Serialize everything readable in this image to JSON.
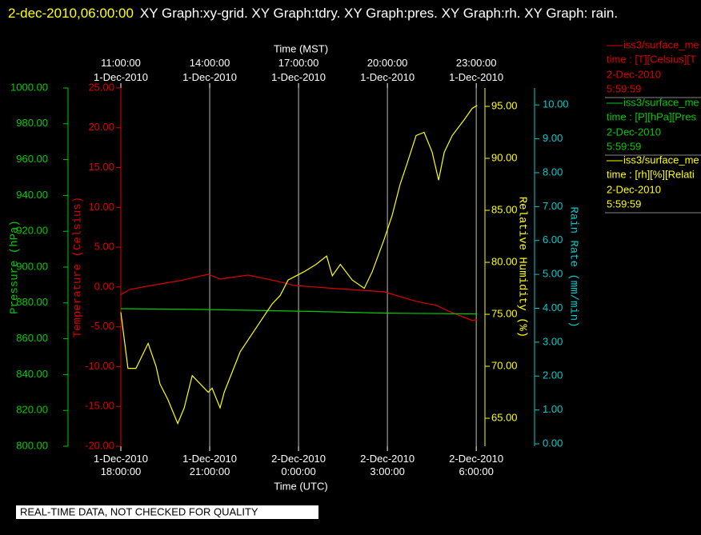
{
  "chart_data": {
    "type": "line",
    "title": "2-dec-2010,06:00:00",
    "subtitle": "XY Graph:xy-grid.  XY Graph:tdry.  XY Graph:pres.  XY Graph:rh.  XY Graph: rain.",
    "xlabel": "Time (UTC)",
    "x2label": "Time (MST)",
    "xlim": [
      0,
      12.05
    ],
    "xticks": [
      {
        "value": 0,
        "label": "1-Dec-2010\n18:00:00"
      },
      {
        "value": 3,
        "label": "1-Dec-2010\n21:00:00"
      },
      {
        "value": 6,
        "label": "2-Dec-2010\n0:00:00"
      },
      {
        "value": 9,
        "label": "2-Dec-2010\n3:00:00"
      },
      {
        "value": 12,
        "label": "2-Dec-2010\n6:00:00"
      }
    ],
    "x2ticks": [
      {
        "value": 0,
        "label": "11:00:00\n1-Dec-2010"
      },
      {
        "value": 3,
        "label": "14:00:00\n1-Dec-2010"
      },
      {
        "value": 6,
        "label": "17:00:00\n1-Dec-2010"
      },
      {
        "value": 9,
        "label": "20:00:00\n1-Dec-2010"
      },
      {
        "value": 12,
        "label": "23:00:00\n1-Dec-2010"
      }
    ],
    "grid": true,
    "axes": [
      {
        "label": "Pressure (hPa)",
        "color": "#00cc00",
        "ylim": [
          800,
          1000
        ],
        "yticks": [
          {
            "value": 800,
            "label": "800.00"
          },
          {
            "value": 820,
            "label": "820.00"
          },
          {
            "value": 840,
            "label": "840.00"
          },
          {
            "value": 860,
            "label": "860.00"
          },
          {
            "value": 880,
            "label": "880.00"
          },
          {
            "value": 900,
            "label": "900.00"
          },
          {
            "value": 920,
            "label": "920.00"
          },
          {
            "value": 940,
            "label": "940.00"
          },
          {
            "value": 960,
            "label": "960.00"
          },
          {
            "value": 980,
            "label": "980.00"
          },
          {
            "value": 1000,
            "label": "1000.00"
          }
        ]
      },
      {
        "label": "Temperature (Celsius)",
        "color": "#dd0000",
        "ylim": [
          -20,
          25
        ],
        "yticks": [
          {
            "value": -20,
            "label": "-20.00"
          },
          {
            "value": -15,
            "label": "-15.00"
          },
          {
            "value": -10,
            "label": "-10.00"
          },
          {
            "value": -5,
            "label": "-5.00"
          },
          {
            "value": 0,
            "label": "0.00"
          },
          {
            "value": 5,
            "label": "5.00"
          },
          {
            "value": 10,
            "label": "10.00"
          },
          {
            "value": 15,
            "label": "15.00"
          },
          {
            "value": 20,
            "label": "20.00"
          },
          {
            "value": 25,
            "label": "25.00"
          }
        ]
      },
      {
        "label": "Relative Humidity (%)",
        "color": "#ffff00",
        "ylim": [
          62.31,
          96.77
        ],
        "yticks": [
          {
            "value": 65,
            "label": "65.00"
          },
          {
            "value": 70,
            "label": "70.00"
          },
          {
            "value": 75,
            "label": "75.00"
          },
          {
            "value": 80,
            "label": "80.00"
          },
          {
            "value": 85,
            "label": "85.00"
          },
          {
            "value": 90,
            "label": "90.00"
          },
          {
            "value": 95,
            "label": "95.00"
          }
        ]
      },
      {
        "label": "Rain Rate (mm/min)",
        "color": "#00cccc",
        "ylim": [
          -0.07,
          10.5
        ],
        "yticks": [
          {
            "value": 0,
            "label": "0.00"
          },
          {
            "value": 1,
            "label": "1.00"
          },
          {
            "value": 2,
            "label": "2.00"
          },
          {
            "value": 3,
            "label": "3.00"
          },
          {
            "value": 4,
            "label": "4.00"
          },
          {
            "value": 5,
            "label": "5.00"
          },
          {
            "value": 6,
            "label": "6.00"
          },
          {
            "value": 7,
            "label": "7.00"
          },
          {
            "value": 8,
            "label": "8.00"
          },
          {
            "value": 9,
            "label": "9.00"
          },
          {
            "value": 10,
            "label": "10.00"
          }
        ]
      }
    ],
    "series": [
      {
        "name": "iss3/surface_me",
        "units": "time : [T][Celsius][T",
        "date": "2-Dec-2010",
        "time": "5:59:59",
        "color": "#dd0000",
        "axis": 1,
        "x": [
          0,
          0.3,
          1.05,
          2.0,
          2.95,
          3.35,
          4.3,
          5.2,
          5.84,
          7.27,
          8.89,
          9.97,
          10.65,
          11.05,
          11.86,
          12.03
        ],
        "values": [
          -1.0,
          -0.3,
          0.2,
          0.8,
          1.6,
          1.0,
          1.5,
          0.8,
          0.2,
          -0.2,
          -0.6,
          -1.8,
          -2.3,
          -3.0,
          -4.2,
          -4.1
        ]
      },
      {
        "name": "iss3/surface_me",
        "units": "time : [P][hPa][Pres",
        "date": "2-Dec-2010",
        "time": "5:59:59",
        "color": "#00cc00",
        "axis": 0,
        "x": [
          0,
          3,
          6,
          9,
          12.03
        ],
        "values": [
          876.8,
          876.3,
          875.4,
          874.3,
          873.9
        ]
      },
      {
        "name": "iss3/surface_me",
        "units": "time : [rh][%][Relati",
        "date": "2-Dec-2010",
        "time": "5:59:59",
        "color": "#ffff00",
        "axis": 2,
        "x": [
          0,
          0.24,
          0.51,
          0.92,
          1.19,
          1.32,
          1.59,
          1.92,
          2.14,
          2.41,
          2.68,
          2.95,
          3.08,
          3.35,
          3.49,
          4.03,
          4.57,
          5.11,
          5.38,
          5.65,
          6.19,
          6.59,
          6.95,
          7.14,
          7.41,
          7.81,
          8.22,
          8.49,
          8.89,
          9.16,
          9.43,
          9.7,
          9.97,
          10.24,
          10.51,
          10.73,
          10.92,
          11.19,
          11.59,
          11.86,
          12.03
        ],
        "values": [
          75.2,
          69.8,
          69.8,
          72.2,
          70,
          68.3,
          66.8,
          64.5,
          66,
          69.1,
          68.3,
          67.5,
          67.9,
          66,
          67.5,
          71.4,
          73.7,
          76,
          76.8,
          78.3,
          79.1,
          79.8,
          80.6,
          78.7,
          79.8,
          78.3,
          77.5,
          79.1,
          82.2,
          84.5,
          87.5,
          89.8,
          92.2,
          92.5,
          90.6,
          87.9,
          90.6,
          92.2,
          93.7,
          94.8,
          95.1
        ]
      }
    ],
    "footer": "REAL-TIME DATA, NOT CHECKED FOR QUALITY"
  }
}
